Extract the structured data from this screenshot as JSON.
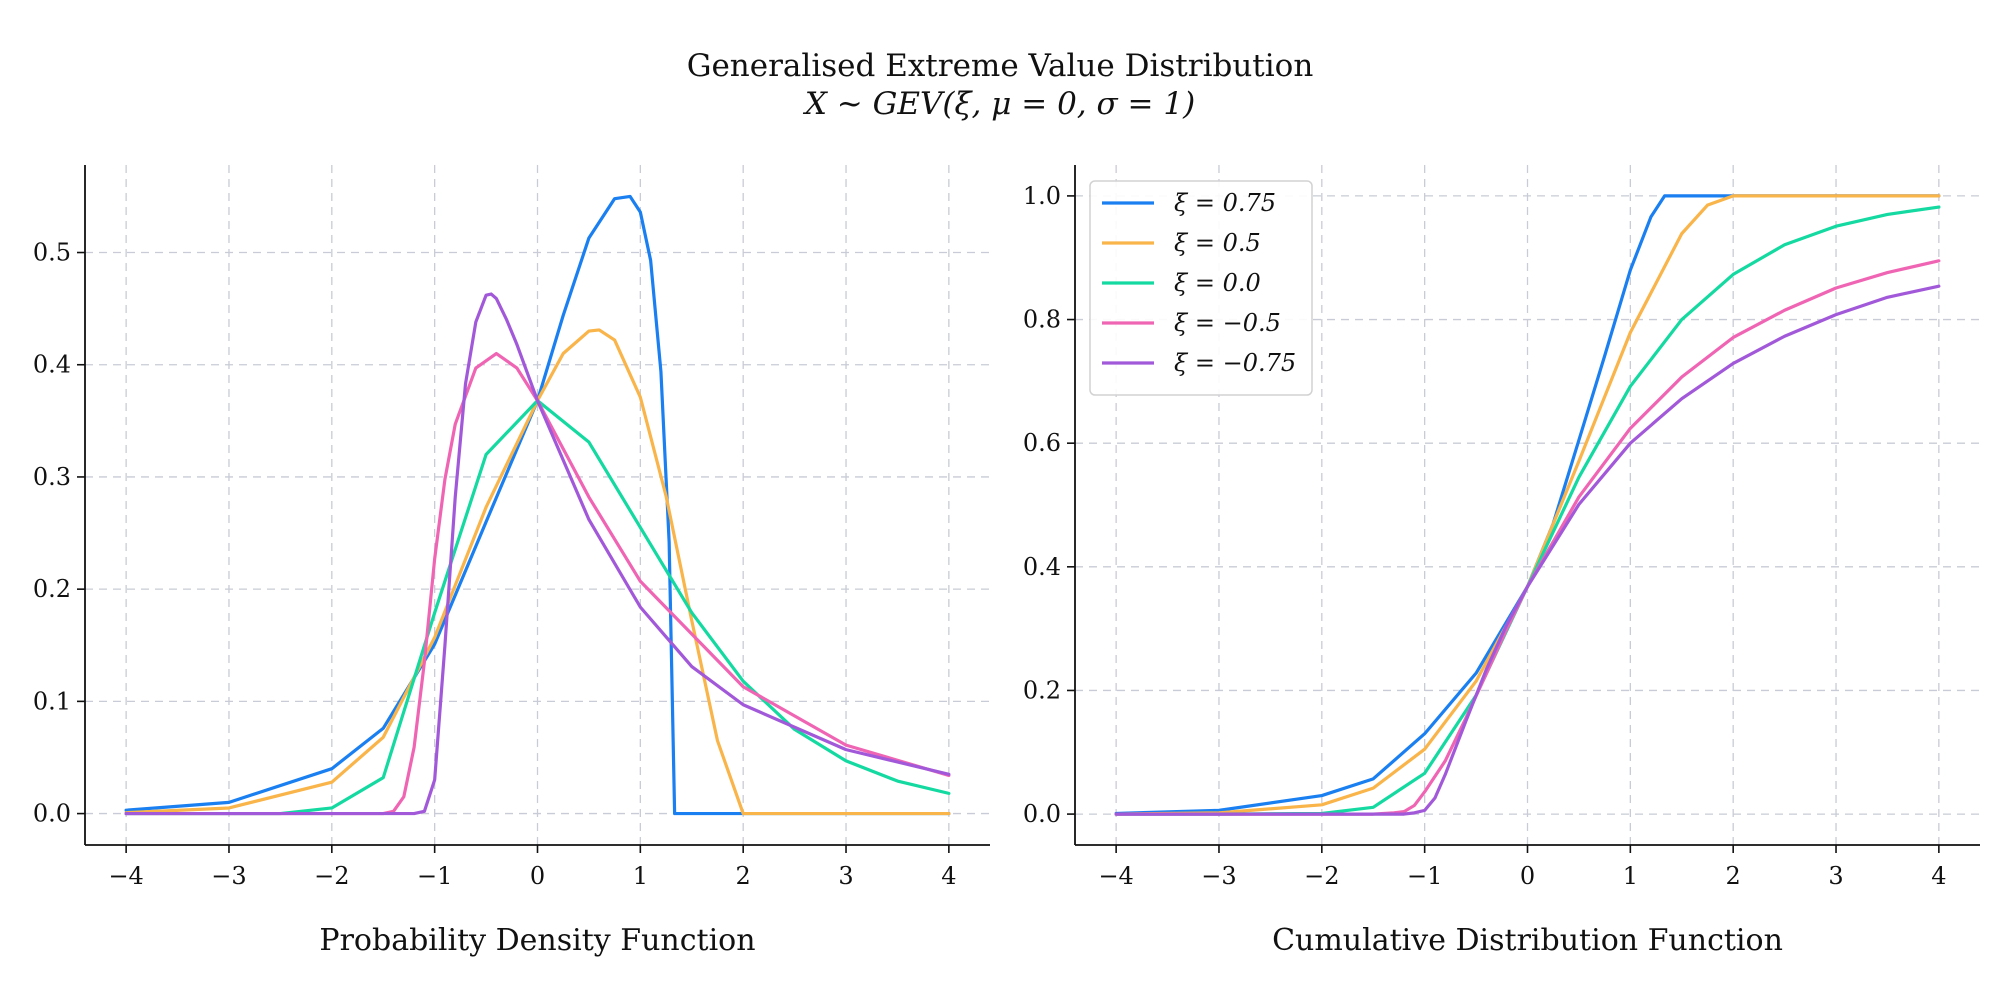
{
  "figure": {
    "title": "Generalised Extreme Value Distribution",
    "subtitle": "X ~ GEV(ξ, μ = 0, σ = 1)"
  },
  "chart_data": [
    {
      "type": "line",
      "id": "pdf",
      "xlabel": "Probability Density Function",
      "ylabel": "",
      "xlim": [
        -4.4,
        4.4
      ],
      "ylim": [
        -0.028,
        0.578
      ],
      "xticks": [
        -4,
        -3,
        -2,
        -1,
        0,
        1,
        2,
        3,
        4
      ],
      "xtick_labels": [
        "−4",
        "−3",
        "−2",
        "−1",
        "0",
        "1",
        "2",
        "3",
        "4"
      ],
      "yticks": [
        0.0,
        0.1,
        0.2,
        0.3,
        0.4,
        0.5
      ],
      "ytick_labels": [
        "0.0",
        "0.1",
        "0.2",
        "0.3",
        "0.4",
        "0.5"
      ],
      "grid": true,
      "legend": "none",
      "series": [
        {
          "xi": 0.75,
          "color": "#1a7ff0",
          "x": [
            -4,
            -3,
            -2,
            -1.5,
            -1,
            -0.5,
            0,
            0.25,
            0.5,
            0.75,
            0.9,
            1.0,
            1.1,
            1.2,
            1.28,
            1.3333,
            1.3333,
            2,
            3,
            4
          ],
          "y": [
            0.003,
            0.01,
            0.04,
            0.076,
            0.151,
            0.26,
            0.368,
            0.444,
            0.513,
            0.548,
            0.55,
            0.536,
            0.493,
            0.394,
            0.242,
            0.0,
            0.0,
            0.0,
            0.0,
            0.0
          ]
        },
        {
          "xi": 0.5,
          "color": "#f9b44a",
          "x": [
            -4,
            -3,
            -2,
            -1.5,
            -1,
            -0.5,
            0,
            0.25,
            0.5,
            0.6,
            0.75,
            1.0,
            1.25,
            1.5,
            1.75,
            2.0,
            3,
            4
          ],
          "y": [
            0.0008,
            0.005,
            0.028,
            0.068,
            0.157,
            0.273,
            0.368,
            0.41,
            0.43,
            0.431,
            0.422,
            0.371,
            0.283,
            0.172,
            0.065,
            0.0,
            0.0,
            0.0
          ]
        },
        {
          "xi": 0.0,
          "color": "#14d9a0",
          "x": [
            -4,
            -3,
            -2.5,
            -2,
            -1.5,
            -1,
            -0.5,
            0,
            0.5,
            1,
            1.5,
            2,
            2.5,
            3,
            3.5,
            4
          ],
          "y": [
            0.0,
            0.0,
            0.0,
            0.005,
            0.032,
            0.179,
            0.32,
            0.368,
            0.331,
            0.255,
            0.179,
            0.118,
            0.075,
            0.047,
            0.029,
            0.018
          ]
        },
        {
          "xi": -0.5,
          "color": "#ef65b4",
          "x": [
            -4,
            -2,
            -1.5,
            -1.4,
            -1.3,
            -1.2,
            -1.1,
            -1.0,
            -0.9,
            -0.8,
            -0.6,
            -0.4,
            -0.2,
            0,
            0.5,
            1,
            2,
            3,
            4
          ],
          "y": [
            0.0,
            0.0,
            0.0,
            0.002,
            0.015,
            0.059,
            0.135,
            0.227,
            0.298,
            0.347,
            0.397,
            0.41,
            0.397,
            0.368,
            0.282,
            0.207,
            0.113,
            0.061,
            0.034
          ]
        },
        {
          "xi": -0.75,
          "color": "#a259d9",
          "x": [
            -4,
            -1.5,
            -1.2,
            -1.1,
            -1.0,
            -0.9,
            -0.8,
            -0.7,
            -0.6,
            -0.5,
            -0.45,
            -0.4,
            -0.3,
            -0.2,
            0,
            0.5,
            1,
            1.5,
            2,
            3,
            4
          ],
          "y": [
            0.0,
            0.0,
            0.0,
            0.002,
            0.03,
            0.15,
            0.282,
            0.383,
            0.438,
            0.462,
            0.463,
            0.459,
            0.44,
            0.418,
            0.368,
            0.262,
            0.184,
            0.131,
            0.097,
            0.057,
            0.035
          ]
        }
      ]
    },
    {
      "type": "line",
      "id": "cdf",
      "xlabel": "Cumulative Distribution Function",
      "ylabel": "",
      "xlim": [
        -4.4,
        4.4
      ],
      "ylim": [
        -0.05,
        1.05
      ],
      "xticks": [
        -4,
        -3,
        -2,
        -1,
        0,
        1,
        2,
        3,
        4
      ],
      "xtick_labels": [
        "−4",
        "−3",
        "−2",
        "−1",
        "0",
        "1",
        "2",
        "3",
        "4"
      ],
      "yticks": [
        0.0,
        0.2,
        0.4,
        0.6,
        0.8,
        1.0
      ],
      "ytick_labels": [
        "0.0",
        "0.2",
        "0.4",
        "0.6",
        "0.8",
        "1.0"
      ],
      "grid": true,
      "legend": "upper-left",
      "series": [
        {
          "name": "ξ = 0.75",
          "xi": 0.75,
          "color": "#1a7ff0",
          "x": [
            -4,
            -3,
            -2,
            -1.5,
            -1,
            -0.5,
            0,
            0.25,
            0.5,
            0.75,
            1.0,
            1.2,
            1.3333,
            2,
            3,
            4
          ],
          "y": [
            0.001,
            0.006,
            0.03,
            0.057,
            0.13,
            0.228,
            0.368,
            0.47,
            0.605,
            0.741,
            0.88,
            0.966,
            1.0,
            1.0,
            1.0,
            1.0
          ]
        },
        {
          "name": "ξ = 0.5",
          "xi": 0.5,
          "color": "#f9b44a",
          "x": [
            -4,
            -3,
            -2,
            -1.5,
            -1,
            -0.5,
            0,
            0.5,
            1.0,
            1.5,
            1.75,
            2.0,
            3,
            4
          ],
          "y": [
            0.0,
            0.002,
            0.015,
            0.042,
            0.105,
            0.215,
            0.368,
            0.571,
            0.779,
            0.939,
            0.985,
            1.0,
            1.0,
            1.0
          ]
        },
        {
          "name": "ξ = 0.0",
          "xi": 0.0,
          "color": "#14d9a0",
          "x": [
            -4,
            -3,
            -2,
            -1.5,
            -1,
            -0.5,
            0,
            0.5,
            1,
            1.5,
            2,
            2.5,
            3,
            3.5,
            4
          ],
          "y": [
            0.0,
            0.0,
            0.001,
            0.011,
            0.066,
            0.192,
            0.368,
            0.545,
            0.692,
            0.8,
            0.873,
            0.921,
            0.951,
            0.97,
            0.982
          ]
        },
        {
          "name": "ξ = −0.5",
          "xi": -0.5,
          "color": "#ef65b4",
          "x": [
            -4,
            -1.5,
            -1.3,
            -1.2,
            -1.1,
            -1.0,
            -0.8,
            -0.6,
            -0.4,
            -0.2,
            0,
            0.5,
            1,
            1.5,
            2,
            2.5,
            3,
            3.5,
            4
          ],
          "y": [
            0.0,
            0.0,
            0.002,
            0.004,
            0.014,
            0.036,
            0.086,
            0.155,
            0.227,
            0.3,
            0.368,
            0.513,
            0.624,
            0.707,
            0.771,
            0.815,
            0.851,
            0.876,
            0.895
          ]
        },
        {
          "name": "ξ = −0.75",
          "xi": -0.75,
          "color": "#a259d9",
          "x": [
            -4,
            -1.2,
            -1.1,
            -1.0,
            -0.9,
            -0.8,
            -0.6,
            -0.4,
            -0.2,
            0,
            0.5,
            1,
            1.5,
            2,
            2.5,
            3,
            3.5,
            4
          ],
          "y": [
            0.0,
            0.0,
            0.002,
            0.006,
            0.026,
            0.064,
            0.15,
            0.234,
            0.307,
            0.368,
            0.501,
            0.6,
            0.672,
            0.729,
            0.773,
            0.808,
            0.836,
            0.854
          ]
        }
      ]
    }
  ]
}
